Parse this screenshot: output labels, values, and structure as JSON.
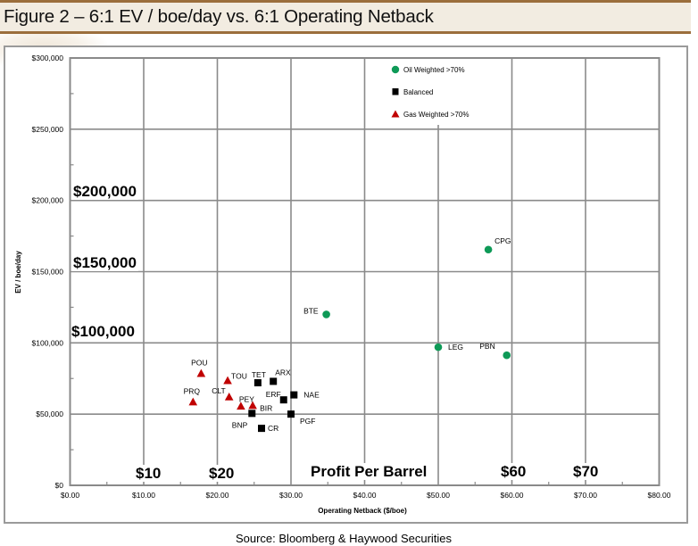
{
  "chart_data": {
    "type": "scatter",
    "title": "Figure 2 – 6:1 EV / boe/day vs. 6:1 Operating Netback",
    "xlabel": "Operating Netback ($/boe)",
    "ylabel": "EV / boe/day",
    "xlim": [
      0,
      80
    ],
    "ylim": [
      0,
      300000
    ],
    "grid": true,
    "legend_position": "top-center",
    "x_ticks": [
      {
        "value": 0,
        "label": "$0.00"
      },
      {
        "value": 10,
        "label": "$10.00"
      },
      {
        "value": 20,
        "label": "$20.00"
      },
      {
        "value": 30,
        "label": "$30.00"
      },
      {
        "value": 40,
        "label": "$40.00"
      },
      {
        "value": 50,
        "label": "$50.00"
      },
      {
        "value": 60,
        "label": "$60.00"
      },
      {
        "value": 70,
        "label": "$70.00"
      },
      {
        "value": 80,
        "label": "$80.00"
      }
    ],
    "y_ticks": [
      {
        "value": 0,
        "label": "$0"
      },
      {
        "value": 50000,
        "label": "$50,000"
      },
      {
        "value": 100000,
        "label": "$100,000"
      },
      {
        "value": 150000,
        "label": "$150,000"
      },
      {
        "value": 200000,
        "label": "$200,000"
      },
      {
        "value": 250000,
        "label": "$250,000"
      },
      {
        "value": 300000,
        "label": "$300,000"
      }
    ],
    "series": [
      {
        "name": "Oil Weighted >70%",
        "marker": "circle",
        "color": "#0e9a57",
        "points": [
          {
            "label": "BTE",
            "x": 34.8,
            "y": 120000
          },
          {
            "label": "LEG",
            "x": 50.0,
            "y": 97000
          },
          {
            "label": "CPG",
            "x": 56.8,
            "y": 165500
          },
          {
            "label": "PBN",
            "x": 59.3,
            "y": 91300
          }
        ]
      },
      {
        "name": "Balanced",
        "marker": "square",
        "color": "#000000",
        "points": [
          {
            "label": "TET",
            "x": 25.5,
            "y": 72000
          },
          {
            "label": "ARX",
            "x": 27.6,
            "y": 73000
          },
          {
            "label": "ERF",
            "x": 29.0,
            "y": 60000
          },
          {
            "label": "NAE",
            "x": 30.4,
            "y": 63500
          },
          {
            "label": "BNP",
            "x": 24.7,
            "y": 50500
          },
          {
            "label": "PGF",
            "x": 30.0,
            "y": 50000
          },
          {
            "label": "CR",
            "x": 26.0,
            "y": 40000
          }
        ]
      },
      {
        "name": "Gas Weighted >70%",
        "marker": "triangle",
        "color": "#c00000",
        "points": [
          {
            "label": "POU",
            "x": 17.8,
            "y": 78500
          },
          {
            "label": "PRQ",
            "x": 16.7,
            "y": 58500
          },
          {
            "label": "TOU",
            "x": 21.4,
            "y": 73500
          },
          {
            "label": "CLT",
            "x": 21.6,
            "y": 62000
          },
          {
            "label": "PEY",
            "x": 23.2,
            "y": 55500
          },
          {
            "label": "BIR",
            "x": 24.8,
            "y": 56000
          }
        ]
      }
    ],
    "annotations": [
      "$200,000",
      "$150,000",
      "$100,000",
      "$10",
      "$20",
      "Profit Per Barrel",
      "$60",
      "$70"
    ]
  },
  "footer": {
    "source": "Source: Bloomberg & Haywood Securities"
  }
}
